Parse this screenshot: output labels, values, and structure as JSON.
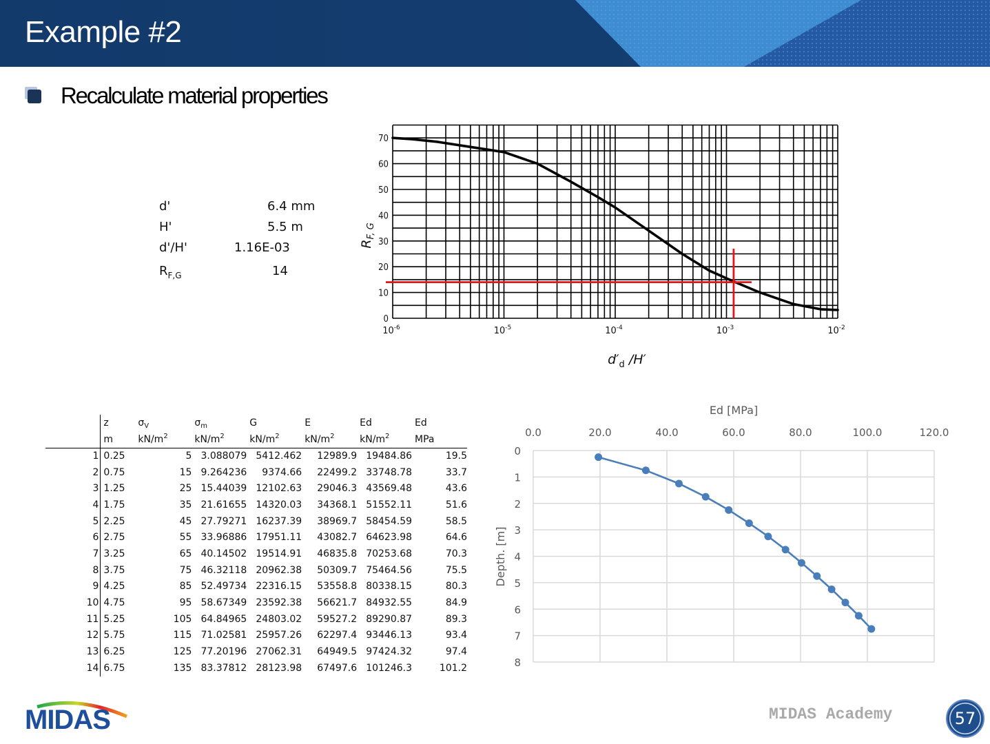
{
  "header": {
    "title": "Example #2",
    "colors": {
      "band_dark": "#123a6b",
      "band_light": "#3f8fd4",
      "band_mid": "#2358a0"
    }
  },
  "section": {
    "bullet_icon": "square-bullet-icon",
    "heading": "Recalculate material properties"
  },
  "parameters": [
    {
      "label": "d'",
      "value": "6.4 mm"
    },
    {
      "label": "H'",
      "value": "5.5 m"
    },
    {
      "label": "d'/H'",
      "value": "1.16E-03"
    },
    {
      "label": "R",
      "label_sub": "F,G",
      "value": "14"
    }
  ],
  "table": {
    "headers": [
      {
        "symbol": "z",
        "unit": "m"
      },
      {
        "symbol": "σ",
        "symbol_sub": "V",
        "unit": "kN/m",
        "unit_sup": "2"
      },
      {
        "symbol": "σ",
        "symbol_sub": "m",
        "unit": "kN/m",
        "unit_sup": "2"
      },
      {
        "symbol": "G",
        "unit": "kN/m",
        "unit_sup": "2"
      },
      {
        "symbol": "E",
        "unit": "kN/m",
        "unit_sup": "2"
      },
      {
        "symbol": "Ed",
        "unit": "kN/m",
        "unit_sup": "2"
      },
      {
        "symbol": "Ed",
        "unit": "MPa"
      }
    ],
    "rows": [
      [
        "1",
        "0.25",
        "5",
        "3.088079",
        "5412.462",
        "12989.9",
        "19484.86",
        "19.5"
      ],
      [
        "2",
        "0.75",
        "15",
        "9.264236",
        "9374.66",
        "22499.2",
        "33748.78",
        "33.7"
      ],
      [
        "3",
        "1.25",
        "25",
        "15.44039",
        "12102.63",
        "29046.3",
        "43569.48",
        "43.6"
      ],
      [
        "4",
        "1.75",
        "35",
        "21.61655",
        "14320.03",
        "34368.1",
        "51552.11",
        "51.6"
      ],
      [
        "5",
        "2.25",
        "45",
        "27.79271",
        "16237.39",
        "38969.7",
        "58454.59",
        "58.5"
      ],
      [
        "6",
        "2.75",
        "55",
        "33.96886",
        "17951.11",
        "43082.7",
        "64623.98",
        "64.6"
      ],
      [
        "7",
        "3.25",
        "65",
        "40.14502",
        "19514.91",
        "46835.8",
        "70253.68",
        "70.3"
      ],
      [
        "8",
        "3.75",
        "75",
        "46.32118",
        "20962.38",
        "50309.7",
        "75464.56",
        "75.5"
      ],
      [
        "9",
        "4.25",
        "85",
        "52.49734",
        "22316.15",
        "53558.8",
        "80338.15",
        "80.3"
      ],
      [
        "10",
        "4.75",
        "95",
        "58.67349",
        "23592.38",
        "56621.7",
        "84932.55",
        "84.9"
      ],
      [
        "11",
        "5.25",
        "105",
        "64.84965",
        "24803.02",
        "59527.2",
        "89290.87",
        "89.3"
      ],
      [
        "12",
        "5.75",
        "115",
        "71.02581",
        "25957.26",
        "62297.4",
        "93446.13",
        "93.4"
      ],
      [
        "13",
        "6.25",
        "125",
        "77.20196",
        "27062.31",
        "64949.5",
        "97424.32",
        "97.4"
      ],
      [
        "14",
        "6.75",
        "135",
        "83.37812",
        "28123.98",
        "67497.6",
        "101246.3",
        "101.2"
      ]
    ]
  },
  "chart_data": [
    {
      "type": "line",
      "title": "",
      "xlabel": "d'd / H'",
      "ylabel": "R F,G",
      "xscale": "log",
      "xlim": [
        1e-06,
        0.01
      ],
      "ylim": [
        0,
        70
      ],
      "x_ticks": [
        "10^-6",
        "10^-5",
        "10^-4",
        "10^-3",
        "10^-2"
      ],
      "y_ticks": [
        0,
        10,
        20,
        30,
        40,
        50,
        60,
        70
      ],
      "grid": true,
      "series": [
        {
          "name": "R F,G curve",
          "color": "#000000",
          "x": [
            1e-06,
            1.5e-06,
            2.5e-06,
            5e-06,
            1e-05,
            2e-05,
            4e-05,
            7e-05,
            0.0001,
            0.0002,
            0.0004,
            0.0007,
            0.001,
            0.0012,
            0.002,
            0.004,
            0.007,
            0.01
          ],
          "y": [
            70,
            69.5,
            68.5,
            66.5,
            64.5,
            60,
            53,
            47,
            43,
            34,
            25,
            18.5,
            15.5,
            14,
            10,
            5.5,
            3.5,
            3.2
          ]
        }
      ],
      "annotations": [
        {
          "type": "hline",
          "y": 14,
          "color": "#e0161b",
          "label": "R F,G = 14"
        },
        {
          "type": "vline",
          "x": 0.00116,
          "color": "#e0161b",
          "label": "d'/H' = 1.16E-03"
        }
      ]
    },
    {
      "type": "scatter",
      "title": "Ed [MPa]",
      "xlabel": "Ed [MPa]",
      "ylabel": "Depth. [m]",
      "xlim": [
        0,
        120
      ],
      "ylim": [
        8,
        0
      ],
      "x_ticks": [
        "0.0",
        "20.0",
        "40.0",
        "60.0",
        "80.0",
        "100.0",
        "120.0"
      ],
      "y_ticks": [
        "0",
        "1",
        "2",
        "3",
        "4",
        "5",
        "6",
        "7",
        "8"
      ],
      "grid": true,
      "x_axis_position": "top",
      "y_axis_inverted": true,
      "series": [
        {
          "name": "Ed",
          "color": "#4a7ebb",
          "x": [
            19.5,
            33.7,
            43.6,
            51.6,
            58.5,
            64.6,
            70.3,
            75.5,
            80.3,
            84.9,
            89.3,
            93.4,
            97.4,
            101.2
          ],
          "y": [
            0.25,
            0.75,
            1.25,
            1.75,
            2.25,
            2.75,
            3.25,
            3.75,
            4.25,
            4.75,
            5.25,
            5.75,
            6.25,
            6.75
          ]
        }
      ]
    }
  ],
  "footer": {
    "logo_text": "MIDAS",
    "academy": "MIDAS Academy",
    "page_number": "57"
  }
}
